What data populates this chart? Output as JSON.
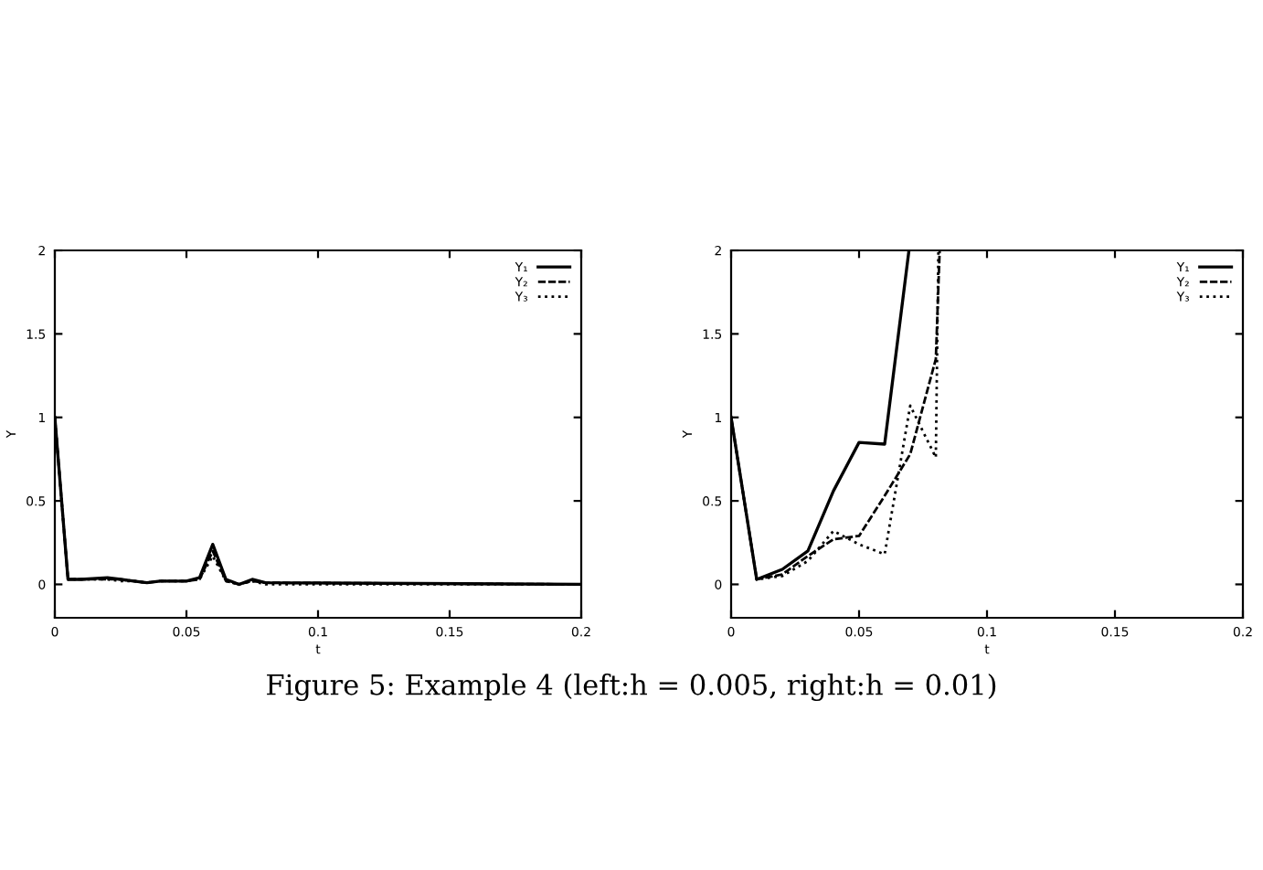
{
  "chart_data": [
    {
      "type": "line",
      "xlabel": "t",
      "ylabel": "Y",
      "xlim": [
        0,
        0.2
      ],
      "ylim": [
        -0.2,
        2
      ],
      "xticks": [
        0,
        0.05,
        0.1,
        0.15,
        0.2
      ],
      "yticks": [
        0,
        0.5,
        1,
        1.5,
        2
      ],
      "grid": false,
      "legend": "top right",
      "marker": "none",
      "series": [
        {
          "name": "Y₁",
          "color": "#000000",
          "line_style": "solid",
          "x": [
            0,
            0.005,
            0.01,
            0.02,
            0.025,
            0.03,
            0.035,
            0.04,
            0.045,
            0.05,
            0.055,
            0.06,
            0.065,
            0.07,
            0.075,
            0.08,
            0.2
          ],
          "values": [
            1,
            0.03,
            0.03,
            0.04,
            0.03,
            0.02,
            0.01,
            0.02,
            0.02,
            0.02,
            0.04,
            0.24,
            0.03,
            0.0,
            0.03,
            0.01,
            0
          ]
        },
        {
          "name": "Y₂",
          "color": "#000000",
          "line_style": "dashed",
          "x": [
            0,
            0.005,
            0.01,
            0.02,
            0.025,
            0.03,
            0.035,
            0.04,
            0.045,
            0.05,
            0.055,
            0.06,
            0.065,
            0.07,
            0.075,
            0.08,
            0.2
          ],
          "values": [
            1,
            0.03,
            0.03,
            0.03,
            0.03,
            0.02,
            0.01,
            0.02,
            0.02,
            0.02,
            0.03,
            0.2,
            0.02,
            0.0,
            0.02,
            0.01,
            0
          ]
        },
        {
          "name": "Y₃",
          "color": "#000000",
          "line_style": "dotted",
          "x": [
            0,
            0.005,
            0.01,
            0.02,
            0.025,
            0.03,
            0.035,
            0.04,
            0.045,
            0.05,
            0.055,
            0.06,
            0.065,
            0.07,
            0.075,
            0.08,
            0.2
          ],
          "values": [
            1,
            0.03,
            0.03,
            0.03,
            0.02,
            0.02,
            0.01,
            0.02,
            0.02,
            0.02,
            0.03,
            0.17,
            0.02,
            0.0,
            0.02,
            0.0,
            0
          ]
        }
      ],
      "annotations": [
        "Figure 5: Example 4 (left:h = 0.005, right:h = 0.01)"
      ]
    },
    {
      "type": "line",
      "xlabel": "t",
      "ylabel": "Y",
      "xlim": [
        0,
        0.2
      ],
      "ylim": [
        -0.2,
        2
      ],
      "xticks": [
        0,
        0.05,
        0.1,
        0.15,
        0.2
      ],
      "yticks": [
        0,
        0.5,
        1,
        1.5,
        2
      ],
      "grid": false,
      "legend": "top right",
      "marker": "none",
      "series": [
        {
          "name": "Y₁",
          "color": "#000000",
          "line_style": "solid",
          "x": [
            0,
            0.01,
            0.02,
            0.03,
            0.04,
            0.05,
            0.06,
            0.0695
          ],
          "values": [
            1,
            0.03,
            0.09,
            0.2,
            0.56,
            0.85,
            0.84,
            2
          ]
        },
        {
          "name": "Y₂",
          "color": "#000000",
          "line_style": "dashed",
          "x": [
            0,
            0.01,
            0.02,
            0.03,
            0.04,
            0.05,
            0.06,
            0.07,
            0.08,
            0.0815
          ],
          "values": [
            1,
            0.03,
            0.06,
            0.17,
            0.27,
            0.29,
            0.53,
            0.78,
            1.35,
            2
          ]
        },
        {
          "name": "Y₃",
          "color": "#000000",
          "line_style": "dotted",
          "x": [
            0,
            0.01,
            0.02,
            0.03,
            0.04,
            0.05,
            0.06,
            0.07,
            0.08,
            0.081
          ],
          "values": [
            1,
            0.03,
            0.05,
            0.14,
            0.32,
            0.24,
            0.18,
            1.07,
            0.76,
            2
          ]
        }
      ]
    }
  ]
}
